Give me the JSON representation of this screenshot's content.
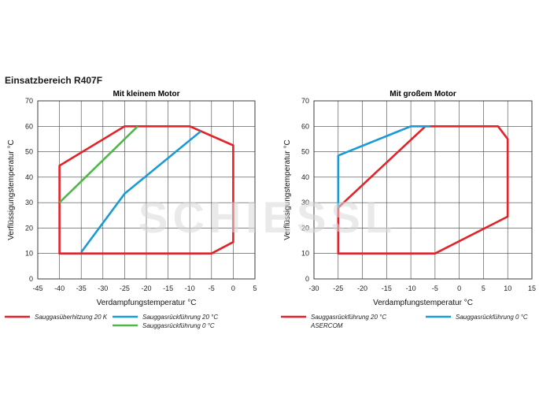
{
  "page": {
    "title": "Einsatzbereich R407F",
    "watermark": "SCHIESSL"
  },
  "chart_data": [
    {
      "type": "line",
      "title": "Mit kleinem Motor",
      "xlabel": "Verdampfungstemperatur °C",
      "ylabel": "Verflüssigungstemperatur °C",
      "xlim": [
        -45,
        5
      ],
      "ylim": [
        0,
        70
      ],
      "xticks": [
        -45,
        -40,
        -35,
        -30,
        -25,
        -20,
        -15,
        -10,
        -5,
        0,
        5
      ],
      "yticks": [
        0,
        10,
        20,
        30,
        40,
        50,
        60,
        70
      ],
      "grid": true,
      "legend_position": "bottom",
      "series": [
        {
          "name": "Sauggasüberhitzung 20 K",
          "color": "#e2232a",
          "closed": true,
          "points": [
            [
              -40,
              10
            ],
            [
              -5,
              10
            ],
            [
              0,
              14.5
            ],
            [
              0,
              52.5
            ],
            [
              -10,
              60
            ],
            [
              -25,
              60
            ],
            [
              -40,
              44.5
            ]
          ]
        },
        {
          "name": "Sauggasrückführung 20 °C",
          "color": "#1b9ad6",
          "closed": false,
          "points": [
            [
              -35,
              10.5
            ],
            [
              -25,
              33.5
            ],
            [
              -7.5,
              58
            ]
          ]
        },
        {
          "name": "Sauggasrückführung 0 °C",
          "color": "#4db848",
          "closed": false,
          "points": [
            [
              -40,
              30
            ],
            [
              -22,
              60
            ]
          ]
        }
      ]
    },
    {
      "type": "line",
      "title": "Mit großem Motor",
      "xlabel": "Verdampfungstemperatur °C",
      "ylabel": "Verflüssigungstemperatur °C",
      "xlim": [
        -30,
        15
      ],
      "ylim": [
        0,
        70
      ],
      "xticks": [
        -30,
        -25,
        -20,
        -15,
        -10,
        -5,
        0,
        5,
        10,
        15
      ],
      "yticks": [
        0,
        10,
        20,
        30,
        40,
        50,
        60,
        70
      ],
      "grid": true,
      "legend_position": "bottom",
      "series": [
        {
          "name": "Sauggasrückführung 20 °C",
          "name_line2": "ASERCOM",
          "color": "#e2232a",
          "closed": true,
          "points": [
            [
              -25,
              10
            ],
            [
              -5,
              10
            ],
            [
              10,
              24.5
            ],
            [
              10,
              55
            ],
            [
              8,
              60
            ],
            [
              -7,
              60
            ],
            [
              -25,
              28
            ]
          ]
        },
        {
          "name": "Sauggasrückführung 0 °C",
          "color": "#1b9ad6",
          "closed": false,
          "points": [
            [
              -25,
              28
            ],
            [
              -25,
              48.5
            ],
            [
              -10,
              60
            ],
            [
              -6,
              60
            ]
          ]
        }
      ]
    }
  ]
}
